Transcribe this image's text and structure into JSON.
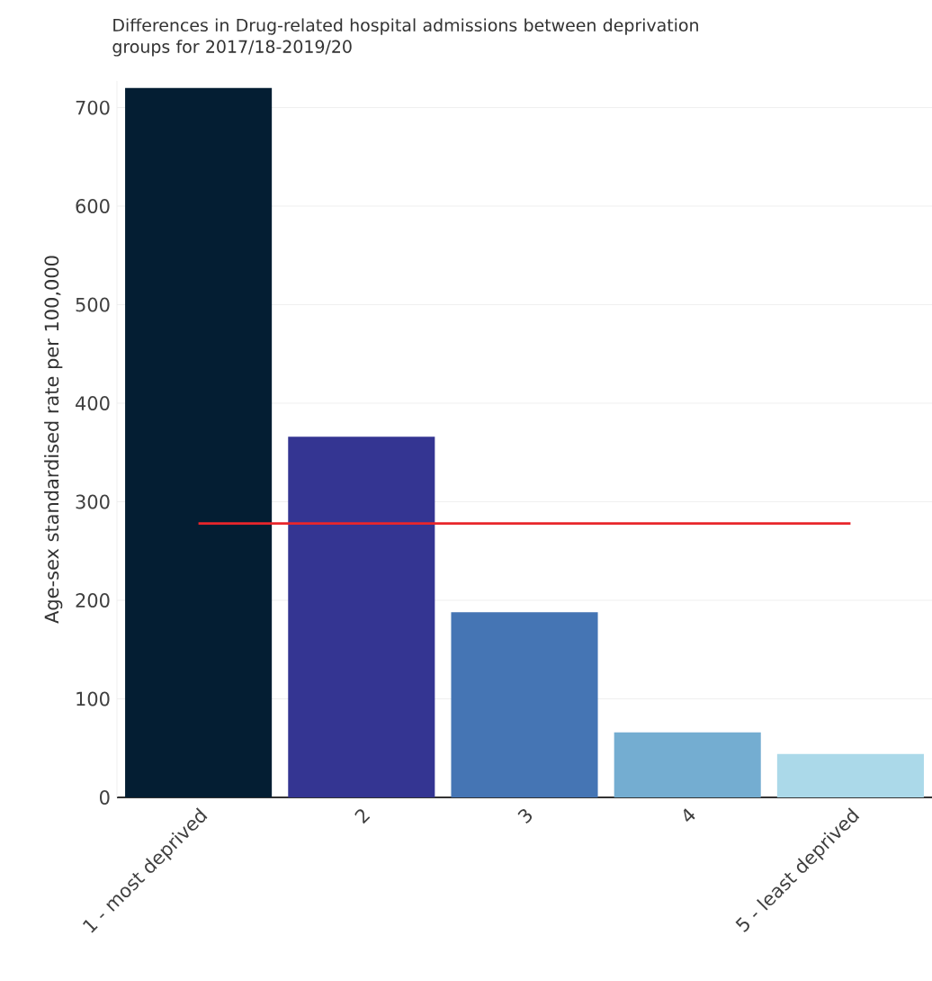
{
  "chart_data": {
    "type": "bar",
    "title": "Differences in Drug-related hospital admissions between deprivation groups for 2017/18-2019/20",
    "ylabel": "Age-sex standardised rate per 100,000",
    "categories": [
      "1 - most deprived",
      "2",
      "3",
      "4",
      "5 - least deprived"
    ],
    "values": [
      720,
      366,
      188,
      66,
      44
    ],
    "colors": [
      "#041e33",
      "#343592",
      "#4575b4",
      "#74add1",
      "#abd9e9"
    ],
    "ylim": [
      0,
      727
    ],
    "yticks": [
      0,
      100,
      200,
      300,
      400,
      500,
      600,
      700
    ],
    "grid": "y",
    "ref_lines": [
      {
        "axis": "y",
        "value": 278,
        "color": "#e8262b"
      }
    ]
  }
}
